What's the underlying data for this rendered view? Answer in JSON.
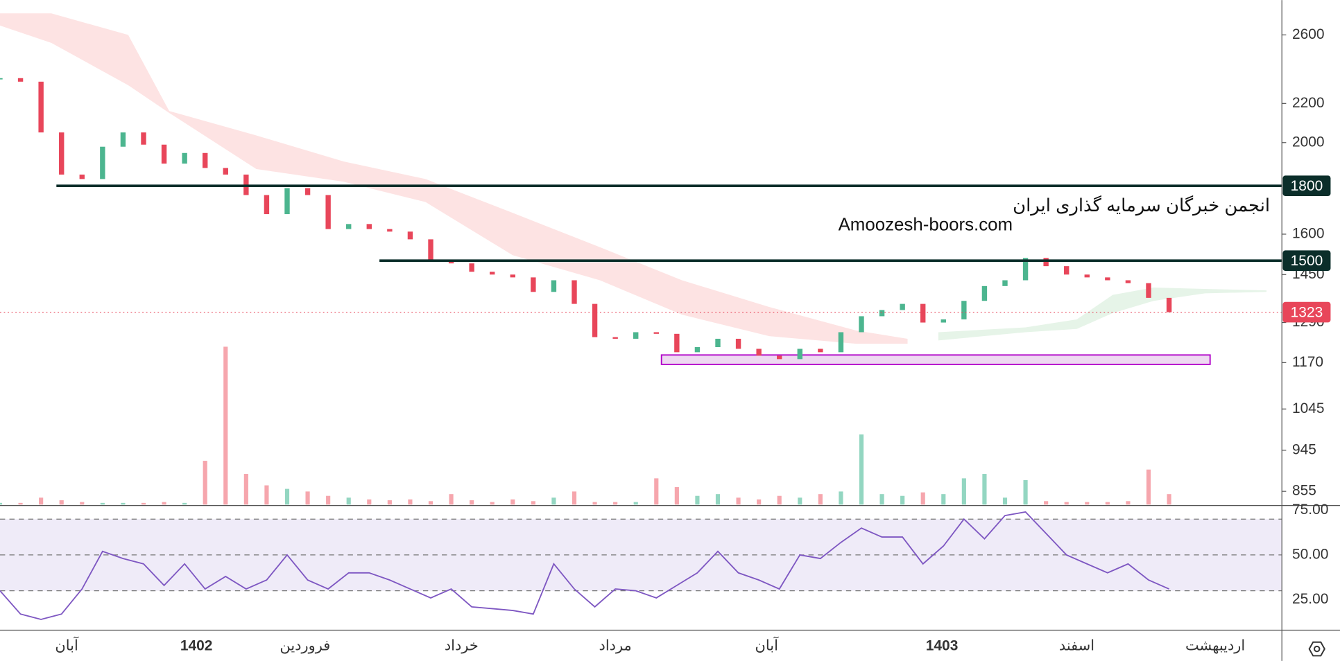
{
  "chart_data": [
    {
      "type": "candlestick",
      "x": [
        0,
        4,
        8,
        12,
        16,
        20,
        24,
        28,
        32,
        36,
        40,
        44,
        48,
        52,
        56,
        60,
        64,
        68,
        72,
        76,
        80,
        84,
        88,
        92,
        96,
        100,
        104,
        108,
        112,
        116,
        120,
        124,
        128,
        132,
        136,
        140,
        144,
        148,
        152,
        156,
        160,
        164,
        168,
        172,
        176,
        180,
        184,
        188,
        192,
        196,
        200,
        204,
        208,
        212,
        216,
        220,
        224,
        228
      ],
      "close": [
        2340,
        2320,
        2050,
        1850,
        1830,
        1980,
        2050,
        1990,
        1900,
        1950,
        1880,
        1850,
        1760,
        1680,
        1790,
        1760,
        1620,
        1640,
        1620,
        1610,
        1580,
        1500,
        1490,
        1460,
        1450,
        1440,
        1390,
        1430,
        1350,
        1245,
        1240,
        1260,
        1255,
        1200,
        1215,
        1240,
        1210,
        1190,
        1180,
        1210,
        1200,
        1260,
        1310,
        1330,
        1350,
        1290,
        1300,
        1360,
        1410,
        1430,
        1510,
        1480,
        1450,
        1440,
        1430,
        1420,
        1370,
        1323
      ],
      "volume": [
        2,
        2,
        8,
        5,
        3,
        2,
        2,
        2,
        3,
        2,
        50,
        180,
        35,
        22,
        18,
        15,
        10,
        8,
        6,
        5,
        6,
        4,
        12,
        5,
        3,
        6,
        4,
        8,
        15,
        3,
        3,
        3,
        30,
        20,
        10,
        12,
        8,
        6,
        10,
        8,
        12,
        15,
        80,
        12,
        10,
        14,
        12,
        30,
        35,
        8,
        28,
        4,
        3,
        3,
        3,
        4,
        40,
        12
      ],
      "up_color": "#4cb58f",
      "down_color": "#e8465a",
      "xlim": [
        0,
        250
      ],
      "ylim": [
        826,
        2830
      ],
      "log": true,
      "yticks": [
        2600,
        2200,
        2000,
        1600,
        1450,
        1290,
        1170,
        1045,
        945,
        855
      ],
      "levels": [
        {
          "value": 1800,
          "from": 11
        },
        {
          "value": 1500,
          "from": 74
        }
      ],
      "zone": {
        "from": 129,
        "to": 236,
        "low": 1165,
        "high": 1192
      },
      "cloud": [
        {
          "color": "#fde3e3",
          "x": [
            0,
            10,
            25,
            33,
            50,
            67,
            83,
            100,
            117,
            133,
            150,
            167,
            177
          ],
          "upper": [
            2740,
            2740,
            2600,
            2160,
            2035,
            1910,
            1830,
            1685,
            1550,
            1430,
            1340,
            1265,
            1240
          ],
          "lower": [
            2660,
            2550,
            2300,
            2150,
            1875,
            1818,
            1730,
            1520,
            1430,
            1315,
            1248,
            1225,
            1225
          ]
        },
        {
          "color": "#e6f4e8",
          "x": [
            183,
            200,
            210,
            217,
            225,
            235,
            247
          ],
          "upper": [
            1260,
            1275,
            1300,
            1380,
            1405,
            1400,
            1395
          ],
          "lower": [
            1235,
            1260,
            1270,
            1320,
            1360,
            1385,
            1390
          ]
        }
      ],
      "watermark": [
        "انجمن خبرگان سرمایه گذاری ایران",
        "Amoozesh-boors.com"
      ]
    },
    {
      "type": "line",
      "x": [
        0,
        4,
        8,
        12,
        16,
        20,
        24,
        28,
        32,
        36,
        40,
        44,
        48,
        52,
        56,
        60,
        64,
        68,
        72,
        76,
        80,
        84,
        88,
        92,
        96,
        100,
        104,
        108,
        112,
        116,
        120,
        124,
        128,
        132,
        136,
        140,
        144,
        148,
        152,
        156,
        160,
        164,
        168,
        172,
        176,
        180,
        184,
        188,
        192,
        196,
        200,
        204,
        208,
        212,
        216,
        220,
        224,
        228
      ],
      "values": [
        30,
        17,
        14,
        17,
        31,
        52,
        48,
        45,
        33,
        45,
        31,
        38,
        31,
        36,
        50,
        36,
        31,
        40,
        40,
        36,
        31,
        26,
        31,
        21,
        20,
        19,
        17,
        45,
        31,
        21,
        31,
        30,
        26,
        33,
        40,
        52,
        40,
        36,
        31,
        50,
        48,
        57,
        65,
        60,
        60,
        45,
        55,
        70,
        59,
        72,
        74,
        62,
        50,
        45,
        40,
        45,
        36,
        31
      ],
      "color": "#7e57c2",
      "band": [
        30,
        70
      ],
      "levels": [
        30,
        50,
        70
      ],
      "xlim": [
        0,
        250
      ],
      "ylim": [
        8,
        77.6
      ],
      "yticks": [
        {
          "value": 75,
          "label": "75.00"
        },
        {
          "value": 50,
          "label": "50.00"
        },
        {
          "value": 25,
          "label": "25.00"
        }
      ],
      "xticks": [
        {
          "value": 13,
          "label": "آبان"
        },
        {
          "value": 38.3,
          "label": "1402"
        },
        {
          "value": 59.5,
          "label": "فروردین"
        },
        {
          "value": 90,
          "label": "خرداد"
        },
        {
          "value": 120,
          "label": "مرداد"
        },
        {
          "value": 149.5,
          "label": "آبان"
        },
        {
          "value": 183.7,
          "label": "1403"
        },
        {
          "value": 210,
          "label": "اسفند"
        },
        {
          "value": 237,
          "label": "اردیبهشت"
        }
      ]
    }
  ]
}
